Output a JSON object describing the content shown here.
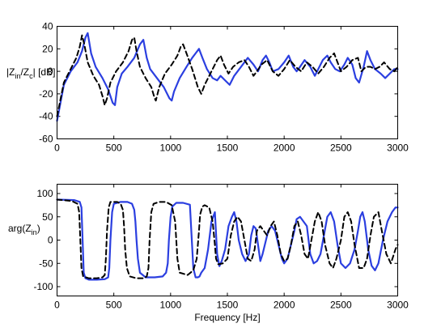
{
  "chart_data": [
    {
      "type": "line",
      "ylabel": "|Z_in/Z_c| [dB]",
      "ylabel_parts": {
        "a": "|Z",
        "a_sub": "in",
        "b": "/Z",
        "b_sub": "c",
        "c": "| [dB]"
      },
      "xlim": [
        0,
        3000
      ],
      "ylim": [
        -60,
        40
      ],
      "xticks": [
        0,
        500,
        1000,
        1500,
        2000,
        2500,
        3000
      ],
      "yticks": [
        -60,
        -40,
        -20,
        0,
        20,
        40
      ],
      "grid": false,
      "series": [
        {
          "style": "solid",
          "color": "#2b3fe0",
          "x": [
            0,
            60,
            120,
            180,
            220,
            250,
            270,
            300,
            340,
            400,
            450,
            490,
            510,
            530,
            570,
            620,
            680,
            730,
            760,
            775,
            790,
            820,
            880,
            940,
            990,
            1010,
            1030,
            1080,
            1140,
            1190,
            1220,
            1250,
            1280,
            1320,
            1370,
            1410,
            1440,
            1480,
            1520,
            1560,
            1620,
            1680,
            1730,
            1770,
            1810,
            1840,
            1870,
            1900,
            1950,
            2000,
            2040,
            2080,
            2110,
            2140,
            2180,
            2230,
            2270,
            2300,
            2340,
            2380,
            2410,
            2450,
            2490,
            2530,
            2560,
            2600,
            2630,
            2660,
            2700,
            2730,
            2760,
            2800,
            2850,
            2890,
            2930,
            2970,
            3000
          ],
          "values": [
            -44,
            -12,
            0,
            8,
            18,
            30,
            34,
            16,
            4,
            -6,
            -16,
            -28,
            -30,
            -14,
            -2,
            4,
            12,
            24,
            28,
            20,
            12,
            2,
            -6,
            -14,
            -24,
            -26,
            -18,
            -6,
            4,
            12,
            16,
            20,
            12,
            2,
            -6,
            -8,
            -4,
            -8,
            -12,
            -4,
            4,
            12,
            6,
            0,
            10,
            14,
            8,
            0,
            2,
            8,
            14,
            4,
            0,
            4,
            10,
            4,
            -4,
            2,
            10,
            14,
            8,
            2,
            0,
            6,
            12,
            6,
            -6,
            -10,
            4,
            18,
            10,
            2,
            -2,
            -6,
            -2,
            2,
            2
          ]
        },
        {
          "style": "dashed",
          "color": "#000000",
          "x": [
            0,
            60,
            120,
            170,
            200,
            220,
            240,
            270,
            320,
            370,
            400,
            420,
            440,
            470,
            520,
            580,
            630,
            660,
            680,
            700,
            730,
            780,
            830,
            860,
            870,
            900,
            950,
            1010,
            1060,
            1090,
            1110,
            1140,
            1190,
            1240,
            1270,
            1300,
            1340,
            1380,
            1410,
            1440,
            1470,
            1510,
            1550,
            1600,
            1650,
            1690,
            1730,
            1760,
            1800,
            1850,
            1900,
            1950,
            2000,
            2050,
            2100,
            2150,
            2200,
            2250,
            2300,
            2350,
            2400,
            2440,
            2470,
            2500,
            2550,
            2600,
            2650,
            2680,
            2720,
            2760,
            2800,
            2840,
            2880,
            2930,
            2970,
            3000
          ],
          "values": [
            -40,
            -10,
            2,
            12,
            22,
            32,
            24,
            8,
            -4,
            -12,
            -22,
            -30,
            -24,
            -10,
            0,
            8,
            18,
            28,
            30,
            18,
            4,
            -6,
            -14,
            -24,
            -26,
            -14,
            -2,
            6,
            14,
            22,
            24,
            16,
            2,
            -14,
            -20,
            -12,
            -4,
            4,
            10,
            14,
            6,
            -2,
            4,
            8,
            10,
            4,
            -4,
            0,
            6,
            10,
            0,
            -4,
            2,
            10,
            4,
            0,
            8,
            4,
            -2,
            4,
            12,
            16,
            8,
            0,
            4,
            10,
            12,
            0,
            4,
            4,
            2,
            4,
            8,
            2,
            0,
            4
          ]
        }
      ]
    },
    {
      "type": "line",
      "ylabel": "arg(Z_in)",
      "ylabel_parts": {
        "a": "arg(Z",
        "a_sub": "in",
        "c": ")"
      },
      "xlabel": "Frequency [Hz]",
      "xlim": [
        0,
        3000
      ],
      "ylim": [
        -120,
        120
      ],
      "xticks": [
        0,
        500,
        1000,
        1500,
        2000,
        2500,
        3000
      ],
      "yticks": [
        -100,
        -50,
        0,
        50,
        100
      ],
      "grid": false,
      "series": [
        {
          "style": "solid",
          "color": "#2b3fe0",
          "x": [
            0,
            150,
            200,
            215,
            225,
            235,
            250,
            280,
            350,
            420,
            450,
            460,
            470,
            485,
            500,
            560,
            620,
            660,
            680,
            690,
            700,
            712,
            730,
            780,
            860,
            930,
            960,
            975,
            985,
            1000,
            1015,
            1050,
            1110,
            1170,
            1200,
            1220,
            1230,
            1240,
            1255,
            1270,
            1300,
            1330,
            1360,
            1390,
            1410,
            1430,
            1450,
            1480,
            1510,
            1540,
            1560,
            1580,
            1600,
            1630,
            1660,
            1690,
            1710,
            1730,
            1750,
            1770,
            1790,
            1810,
            1830,
            1860,
            1890,
            1920,
            1950,
            1980,
            2000,
            2030,
            2060,
            2090,
            2110,
            2140,
            2170,
            2200,
            2230,
            2260,
            2290,
            2320,
            2350,
            2380,
            2410,
            2440,
            2470,
            2500,
            2540,
            2580,
            2620,
            2650,
            2670,
            2690,
            2710,
            2740,
            2770,
            2800,
            2830,
            2870,
            2910,
            2950,
            2980,
            3000
          ],
          "values": [
            87,
            86,
            82,
            70,
            0,
            -70,
            -82,
            -85,
            -85,
            -84,
            -80,
            -60,
            0,
            60,
            78,
            82,
            82,
            78,
            65,
            40,
            0,
            -40,
            -70,
            -80,
            -80,
            -78,
            -70,
            -50,
            0,
            50,
            72,
            80,
            80,
            76,
            -60,
            -80,
            -80,
            -80,
            -78,
            -70,
            -60,
            -20,
            40,
            60,
            -30,
            -56,
            -45,
            -20,
            30,
            50,
            60,
            40,
            0,
            -30,
            -45,
            -30,
            10,
            30,
            25,
            -10,
            -45,
            -30,
            -10,
            20,
            30,
            20,
            -10,
            -40,
            -50,
            -40,
            -10,
            20,
            45,
            50,
            40,
            30,
            -30,
            -50,
            -45,
            -30,
            10,
            50,
            60,
            40,
            -10,
            -50,
            -60,
            -50,
            -20,
            20,
            50,
            60,
            40,
            -20,
            -55,
            -65,
            -50,
            0,
            40,
            60,
            70,
            70
          ]
        },
        {
          "style": "dashed",
          "color": "#000000",
          "x": [
            0,
            130,
            180,
            195,
            205,
            215,
            230,
            280,
            350,
            400,
            420,
            430,
            440,
            455,
            470,
            530,
            560,
            580,
            590,
            600,
            615,
            640,
            700,
            760,
            790,
            805,
            815,
            830,
            850,
            900,
            960,
            1010,
            1040,
            1050,
            1060,
            1080,
            1150,
            1200,
            1230,
            1250,
            1260,
            1280,
            1300,
            1340,
            1370,
            1390,
            1400,
            1420,
            1460,
            1500,
            1530,
            1560,
            1590,
            1620,
            1650,
            1680,
            1710,
            1740,
            1760,
            1790,
            1820,
            1850,
            1880,
            1910,
            1940,
            1970,
            2000,
            2030,
            2060,
            2090,
            2120,
            2150,
            2180,
            2210,
            2240,
            2270,
            2300,
            2330,
            2360,
            2400,
            2430,
            2460,
            2500,
            2530,
            2560,
            2590,
            2620,
            2660,
            2700,
            2730,
            2760,
            2790,
            2830,
            2860,
            2900,
            2940,
            2980,
            3000
          ],
          "values": [
            87,
            84,
            78,
            60,
            0,
            -60,
            -78,
            -82,
            -82,
            -80,
            -75,
            -40,
            20,
            70,
            82,
            82,
            78,
            65,
            30,
            -20,
            -60,
            -78,
            -82,
            -82,
            -78,
            -60,
            0,
            60,
            78,
            82,
            82,
            75,
            40,
            0,
            -40,
            -70,
            -75,
            -65,
            -40,
            20,
            55,
            72,
            75,
            70,
            40,
            -10,
            -40,
            -52,
            -50,
            -40,
            10,
            40,
            50,
            40,
            0,
            -40,
            -45,
            -20,
            20,
            30,
            20,
            10,
            30,
            40,
            10,
            -30,
            -45,
            -40,
            -10,
            30,
            40,
            10,
            -30,
            -40,
            0,
            40,
            60,
            40,
            -10,
            -50,
            -60,
            -40,
            0,
            50,
            60,
            40,
            -10,
            -60,
            -60,
            -40,
            10,
            50,
            60,
            20,
            -30,
            -50,
            -20,
            -10
          ]
        }
      ]
    }
  ]
}
